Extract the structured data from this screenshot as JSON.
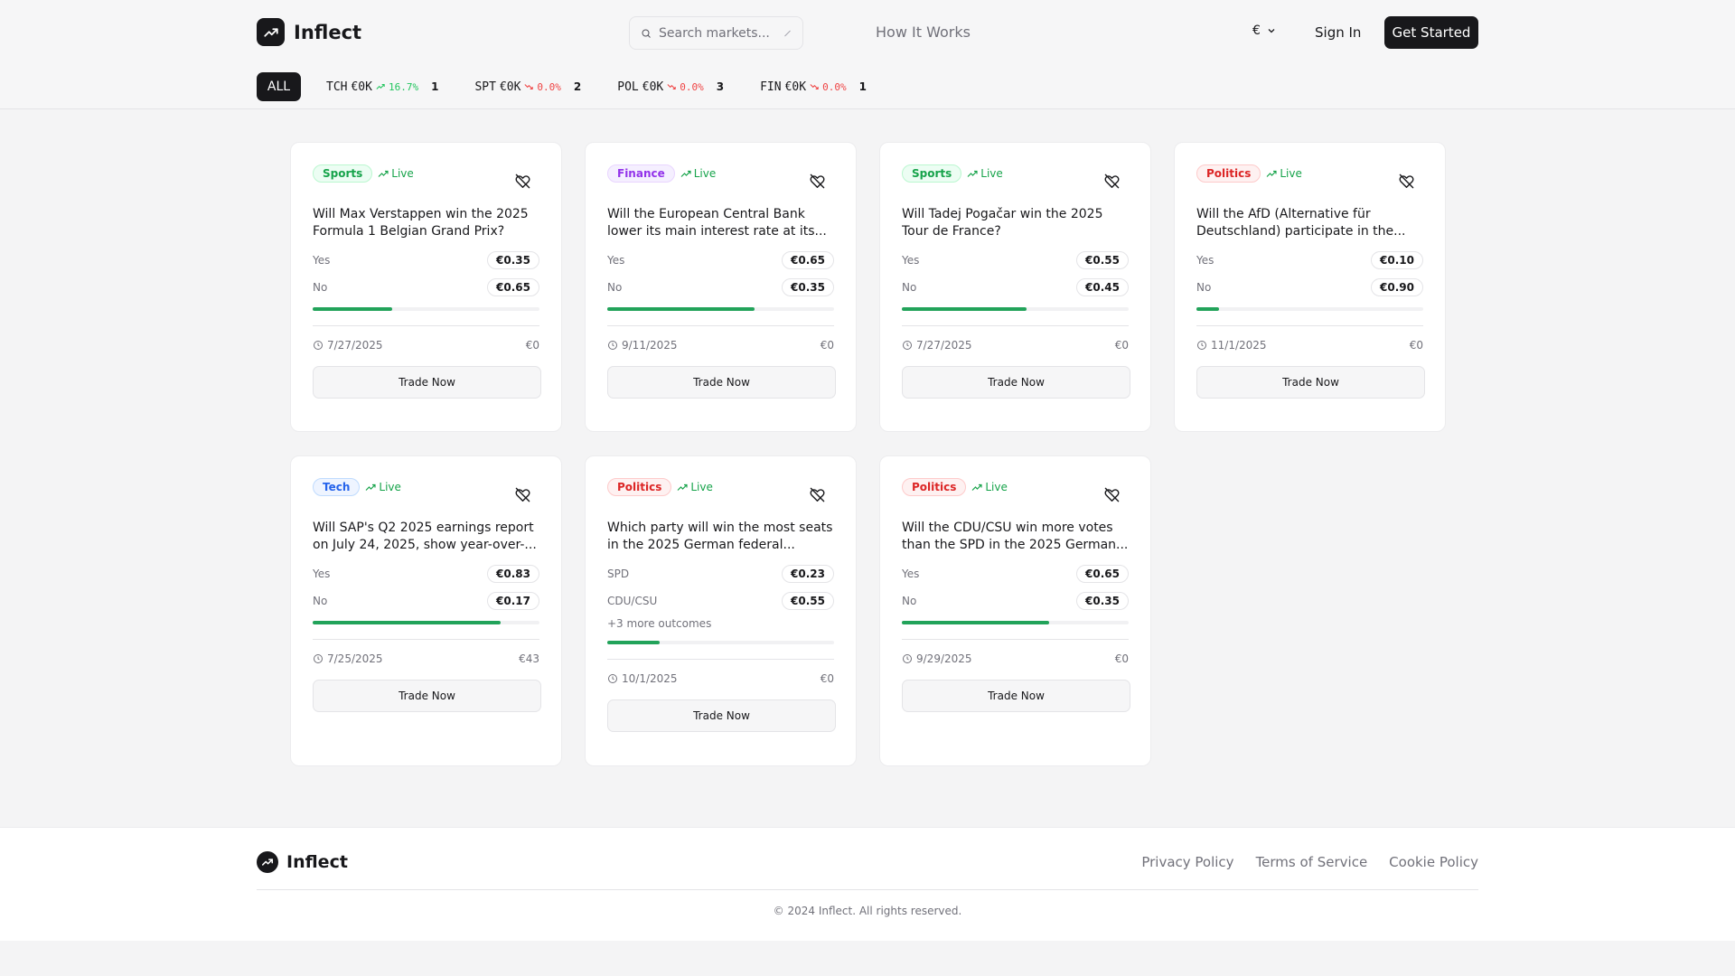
{
  "brand": {
    "name": "Inflect"
  },
  "header": {
    "search_placeholder": "Search markets...",
    "nav_how": "How It Works",
    "currency": "€",
    "sign_in": "Sign In",
    "get_started": "Get Started"
  },
  "ticker": {
    "all_label": "ALL",
    "items": [
      {
        "sym": "TCH",
        "val": "€0K",
        "chg": "16.7%",
        "dir": "up",
        "count": "1"
      },
      {
        "sym": "SPT",
        "val": "€0K",
        "chg": "0.0%",
        "dir": "down",
        "count": "2"
      },
      {
        "sym": "POL",
        "val": "€0K",
        "chg": "0.0%",
        "dir": "down",
        "count": "3"
      },
      {
        "sym": "FIN",
        "val": "€0K",
        "chg": "0.0%",
        "dir": "down",
        "count": "1"
      }
    ]
  },
  "cards": [
    {
      "category": "Sports",
      "cat_class": "sports",
      "live": "Live",
      "q1": "Will Max Verstappen win the 2025",
      "q2": "Formula 1 Belgian Grand Prix?",
      "o1_label": "Yes",
      "o1_price": "€0.35",
      "o2_label": "No",
      "o2_price": "€0.65",
      "more": "",
      "fill": 0.35,
      "date": "7/27/2025",
      "volume": "€0",
      "trade": "Trade Now"
    },
    {
      "category": "Finance",
      "cat_class": "finance",
      "live": "Live",
      "q1": "Will the European Central Bank",
      "q2": "lower its main interest rate at its...",
      "o1_label": "Yes",
      "o1_price": "€0.65",
      "o2_label": "No",
      "o2_price": "€0.35",
      "more": "",
      "fill": 0.65,
      "date": "9/11/2025",
      "volume": "€0",
      "trade": "Trade Now"
    },
    {
      "category": "Sports",
      "cat_class": "sports",
      "live": "Live",
      "q1": "Will Tadej Pogačar win the 2025",
      "q2": "Tour de France?",
      "o1_label": "Yes",
      "o1_price": "€0.55",
      "o2_label": "No",
      "o2_price": "€0.45",
      "more": "",
      "fill": 0.55,
      "date": "7/27/2025",
      "volume": "€0",
      "trade": "Trade Now"
    },
    {
      "category": "Politics",
      "cat_class": "politics",
      "live": "Live",
      "q1": "Will the AfD (Alternative für",
      "q2": "Deutschland) participate in the...",
      "o1_label": "Yes",
      "o1_price": "€0.10",
      "o2_label": "No",
      "o2_price": "€0.90",
      "more": "",
      "fill": 0.1,
      "date": "11/1/2025",
      "volume": "€0",
      "trade": "Trade Now"
    },
    {
      "category": "Tech",
      "cat_class": "tech",
      "live": "Live",
      "q1": "Will SAP's Q2 2025 earnings report",
      "q2": "on July 24, 2025, show year-over-...",
      "o1_label": "Yes",
      "o1_price": "€0.83",
      "o2_label": "No",
      "o2_price": "€0.17",
      "more": "",
      "fill": 0.83,
      "date": "7/25/2025",
      "volume": "€43",
      "trade": "Trade Now"
    },
    {
      "category": "Politics",
      "cat_class": "politics",
      "live": "Live",
      "q1": "Which party will win the most seats",
      "q2": "in the 2025 German federal...",
      "o1_label": "SPD",
      "o1_price": "€0.23",
      "o2_label": "CDU/CSU",
      "o2_price": "€0.55",
      "more": "+3 more outcomes",
      "fill": 0.23,
      "date": "10/1/2025",
      "volume": "€0",
      "trade": "Trade Now"
    },
    {
      "category": "Politics",
      "cat_class": "politics",
      "live": "Live",
      "q1": "Will the CDU/CSU win more votes",
      "q2": "than the SPD in the 2025 German...",
      "o1_label": "Yes",
      "o1_price": "€0.65",
      "o2_label": "No",
      "o2_price": "€0.35",
      "more": "",
      "fill": 0.65,
      "date": "9/29/2025",
      "volume": "€0",
      "trade": "Trade Now"
    }
  ],
  "footer": {
    "links": [
      "Privacy Policy",
      "Terms of Service",
      "Cookie Policy"
    ],
    "copyright": "© 2024 Inflect. All rights reserved."
  }
}
